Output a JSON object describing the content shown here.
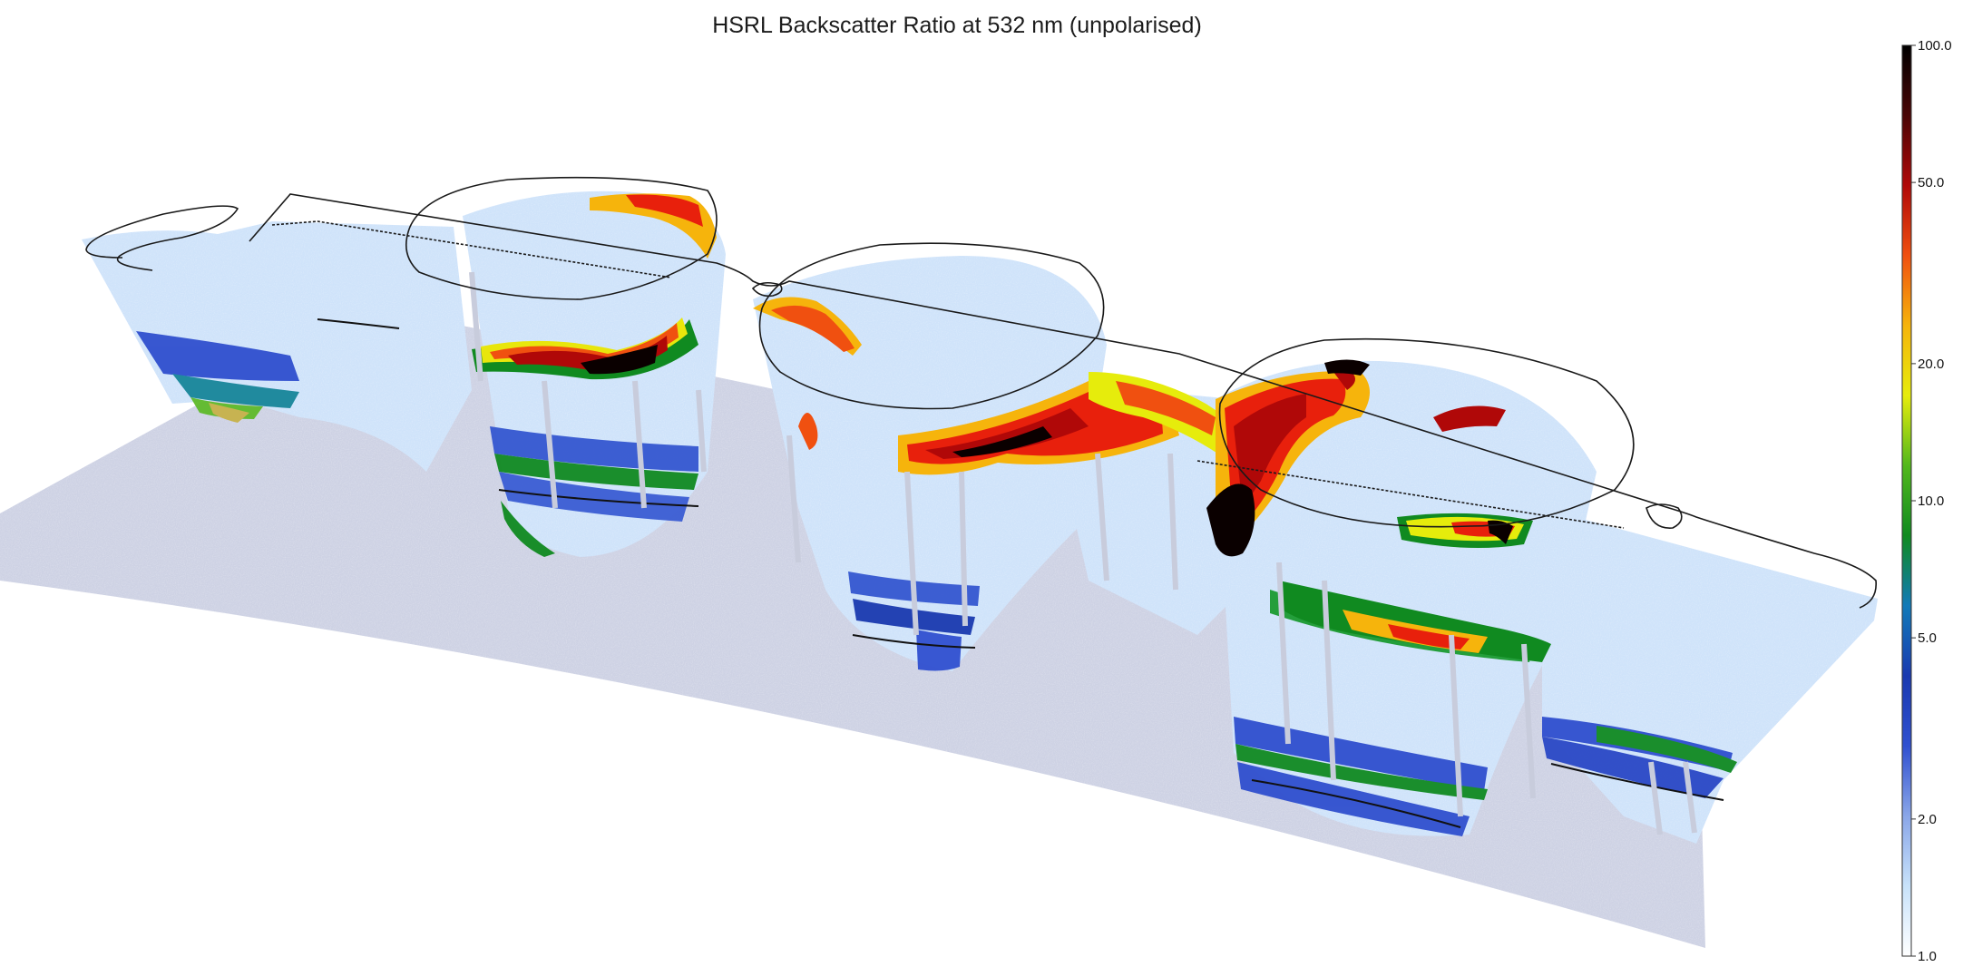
{
  "chart_data": {
    "type": "heatmap",
    "title": "HSRL Backscatter Ratio at 532 nm (unpolarised)",
    "subtype": "3D curtain along flight track",
    "colorbar": {
      "scale": "log",
      "range": [
        1.0,
        100.0
      ],
      "ticks": [
        1.0,
        2.0,
        5.0,
        10.0,
        20.0,
        50.0,
        100.0
      ],
      "tick_labels": [
        "1.0",
        "2.0",
        "5.0",
        "10.0",
        "20.0",
        "50.0",
        "100.0"
      ],
      "placement": "right",
      "colormap": [
        "#ffffff",
        "#c8e2fa",
        "#8aa6e8",
        "#3050d0",
        "#1a3ab0",
        "#127ab8",
        "#108a20",
        "#52b81c",
        "#e6ec0c",
        "#f6b40c",
        "#f05010",
        "#b00808",
        "#4a0606",
        "#000000"
      ]
    }
  },
  "colors": {
    "ground_plane": "#ced2e4",
    "flight_track": "#1a1a1a",
    "background_fill": "#cfe3fa"
  }
}
